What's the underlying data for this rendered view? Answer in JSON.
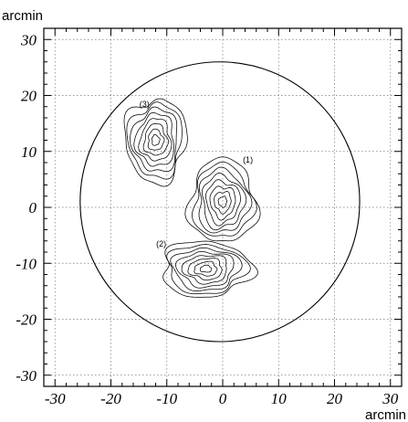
{
  "chart_data": {
    "type": "contour",
    "x_unit_label": "arcmin",
    "y_unit_label": "arcmin",
    "xlim": [
      -32,
      32
    ],
    "ylim": [
      -32,
      32
    ],
    "x_ticks": [
      -30,
      -20,
      -10,
      0,
      10,
      20,
      30
    ],
    "y_ticks": [
      -30,
      -20,
      -10,
      0,
      10,
      20,
      30
    ],
    "x_tick_labels": [
      "-30",
      "-20",
      "-10",
      "0",
      "10",
      "20",
      "30"
    ],
    "y_tick_labels": [
      "-30",
      "-20",
      "-10",
      "0",
      "10",
      "20",
      "30"
    ],
    "grid": true,
    "field_of_view_circle": {
      "center": [
        -0.5,
        1
      ],
      "radius": 25
    },
    "sources": [
      {
        "label": "(1)",
        "center": [
          0,
          1
        ],
        "extent": [
          6,
          7.5
        ],
        "levels": 8,
        "label_pos": [
          4.5,
          8
        ]
      },
      {
        "label": "(2)",
        "center": [
          -3,
          -11
        ],
        "extent": [
          8,
          5
        ],
        "levels": 8,
        "label_pos": [
          -11,
          -7
        ]
      },
      {
        "label": "(3)",
        "center": [
          -12,
          12
        ],
        "extent": [
          5.5,
          7.5
        ],
        "levels": 8,
        "label_pos": [
          -14,
          18
        ]
      }
    ]
  }
}
